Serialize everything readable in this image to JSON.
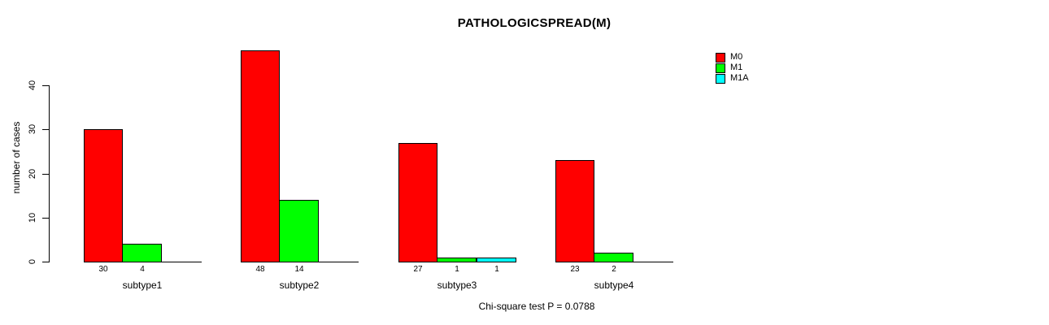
{
  "title": "PATHOLOGICSPREAD(M)",
  "footer": "Chi-square test P = 0.0788",
  "y_axis": {
    "label": "number of cases",
    "ticks": [
      "0",
      "10",
      "20",
      "30",
      "40"
    ]
  },
  "legend": [
    {
      "name": "M0",
      "color": "#ff0000"
    },
    {
      "name": "M1",
      "color": "#00ff00"
    },
    {
      "name": "M1A",
      "color": "#00ffff"
    }
  ],
  "chart_data": {
    "type": "bar",
    "title": "PATHOLOGICSPREAD(M)",
    "xlabel": "",
    "ylabel": "number of cases",
    "ylim": [
      0,
      48
    ],
    "yticks": [
      0,
      10,
      20,
      30,
      40
    ],
    "grid": false,
    "legend_position": "top-right",
    "categories": [
      "subtype1",
      "subtype2",
      "subtype3",
      "subtype4"
    ],
    "series": [
      {
        "name": "M0",
        "color": "#ff0000",
        "values": [
          30,
          48,
          27,
          23
        ]
      },
      {
        "name": "M1",
        "color": "#00ff00",
        "values": [
          4,
          14,
          1,
          2
        ]
      },
      {
        "name": "M1A",
        "color": "#00ffff",
        "values": [
          null,
          null,
          1,
          null
        ]
      }
    ],
    "bar_value_labels": {
      "subtype1": [
        30,
        4
      ],
      "subtype2": [
        48,
        14
      ],
      "subtype3": [
        27,
        1,
        1
      ],
      "subtype4": [
        23,
        2
      ]
    },
    "annotation": "Chi-square test P = 0.0788"
  }
}
